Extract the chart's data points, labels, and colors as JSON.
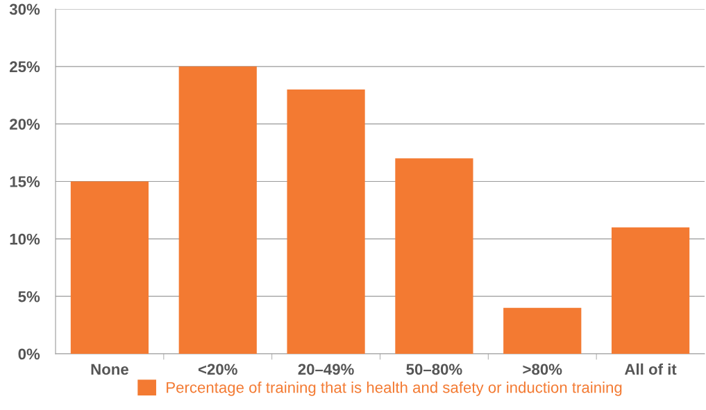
{
  "chart_data": {
    "type": "bar",
    "categories": [
      "None",
      "<20%",
      "20–49%",
      "50–80%",
      ">80%",
      "All of it"
    ],
    "series": [
      {
        "name": "Percentage of training that is health and safety or induction training",
        "color": "#f37a32",
        "values": [
          15,
          25,
          23,
          17,
          4,
          11
        ]
      }
    ],
    "ylim": [
      0,
      30
    ],
    "yticks": [
      {
        "value": 0,
        "label": "0%"
      },
      {
        "value": 5,
        "label": "5%"
      },
      {
        "value": 10,
        "label": "10%"
      },
      {
        "value": 15,
        "label": "15%"
      },
      {
        "value": 20,
        "label": "20%"
      },
      {
        "value": 25,
        "label": "25%"
      },
      {
        "value": 30,
        "label": "30%"
      }
    ],
    "grid": "y",
    "legend": "bottom"
  }
}
